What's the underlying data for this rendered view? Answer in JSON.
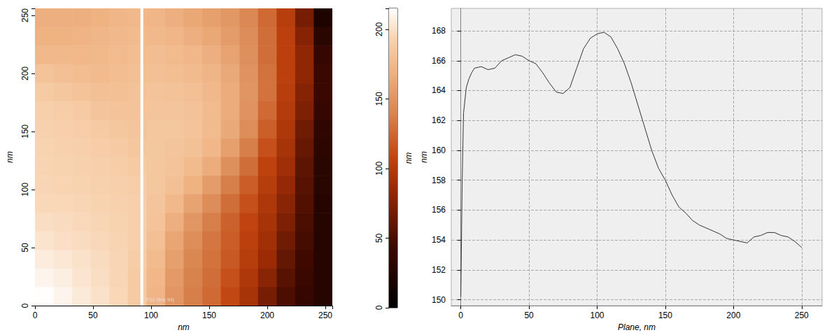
{
  "chart_data": [
    {
      "type": "heatmap",
      "x_label": "nm",
      "y_label": "nm",
      "xlim": [
        0,
        256
      ],
      "ylim": [
        0,
        256
      ],
      "xticks": [
        0,
        50,
        100,
        150,
        200,
        250
      ],
      "yticks": [
        0,
        50,
        100,
        150,
        200,
        250
      ],
      "x": [
        8,
        24,
        40,
        56,
        72,
        88,
        104,
        120,
        136,
        152,
        168,
        184,
        200,
        216,
        232,
        248
      ],
      "y": [
        248,
        232,
        216,
        200,
        184,
        168,
        152,
        136,
        120,
        104,
        88,
        72,
        56,
        40,
        24,
        8
      ],
      "cells": [
        [
          150,
          150,
          150,
          152,
          155,
          158,
          155,
          150,
          145,
          140,
          135,
          125,
          110,
          85,
          50,
          15
        ],
        [
          152,
          152,
          153,
          155,
          158,
          160,
          158,
          155,
          150,
          145,
          138,
          128,
          112,
          88,
          55,
          22
        ],
        [
          158,
          157,
          156,
          157,
          160,
          162,
          162,
          160,
          156,
          150,
          142,
          130,
          112,
          88,
          58,
          28
        ],
        [
          168,
          165,
          162,
          160,
          162,
          165,
          165,
          163,
          160,
          154,
          146,
          132,
          114,
          88,
          58,
          30
        ],
        [
          175,
          172,
          168,
          165,
          165,
          167,
          168,
          167,
          164,
          158,
          148,
          133,
          114,
          86,
          55,
          30
        ],
        [
          180,
          178,
          175,
          170,
          168,
          168,
          170,
          170,
          167,
          160,
          148,
          132,
          110,
          82,
          52,
          28
        ],
        [
          182,
          180,
          178,
          175,
          172,
          170,
          172,
          172,
          168,
          160,
          146,
          128,
          105,
          78,
          48,
          25
        ],
        [
          184,
          182,
          180,
          178,
          175,
          172,
          172,
          170,
          166,
          156,
          140,
          120,
          98,
          72,
          45,
          24
        ],
        [
          185,
          184,
          182,
          180,
          178,
          175,
          172,
          168,
          160,
          148,
          130,
          112,
          90,
          66,
          42,
          22
        ],
        [
          186,
          185,
          184,
          182,
          180,
          178,
          172,
          165,
          152,
          138,
          120,
          104,
          84,
          60,
          40,
          22
        ],
        [
          188,
          187,
          186,
          184,
          182,
          180,
          170,
          158,
          142,
          128,
          112,
          98,
          78,
          56,
          38,
          20
        ],
        [
          192,
          190,
          188,
          186,
          184,
          180,
          168,
          150,
          134,
          120,
          106,
          92,
          72,
          52,
          36,
          20
        ],
        [
          196,
          193,
          190,
          188,
          185,
          180,
          164,
          144,
          128,
          116,
          104,
          88,
          68,
          48,
          34,
          20
        ],
        [
          202,
          198,
          194,
          190,
          186,
          178,
          160,
          140,
          124,
          114,
          102,
          84,
          62,
          44,
          32,
          20
        ],
        [
          208,
          203,
          197,
          192,
          186,
          176,
          156,
          136,
          122,
          112,
          98,
          78,
          56,
          40,
          30,
          20
        ],
        [
          214,
          208,
          200,
          194,
          187,
          175,
          154,
          134,
          120,
          110,
          94,
          72,
          50,
          36,
          28,
          20
        ]
      ],
      "colorbar": {
        "range": [
          0,
          215
        ],
        "ticks": [
          0,
          50,
          100,
          150,
          200
        ],
        "label": "nm"
      },
      "profile_line": {
        "x": 92,
        "label": "PS1 (line 94)"
      }
    },
    {
      "type": "line",
      "x_label": "Plane, nm",
      "y_label": "nm",
      "xlim": [
        -7,
        265
      ],
      "ylim": [
        149.6,
        169.5
      ],
      "xticks": [
        0,
        50,
        100,
        150,
        200,
        250
      ],
      "yticks": [
        150,
        152,
        154,
        156,
        158,
        160,
        162,
        164,
        166,
        168
      ],
      "x": [
        0,
        1,
        2,
        4,
        6,
        8,
        10,
        15,
        20,
        25,
        30,
        35,
        40,
        45,
        50,
        55,
        60,
        65,
        70,
        75,
        80,
        85,
        90,
        95,
        100,
        105,
        110,
        115,
        120,
        125,
        130,
        135,
        140,
        145,
        150,
        155,
        160,
        165,
        170,
        175,
        180,
        185,
        190,
        195,
        200,
        205,
        210,
        215,
        220,
        225,
        230,
        235,
        240,
        245,
        250
      ],
      "values": [
        150.2,
        158,
        162.5,
        164.2,
        164.8,
        165.2,
        165.5,
        165.6,
        165.4,
        165.5,
        166.0,
        166.2,
        166.4,
        166.3,
        166.0,
        165.8,
        165.2,
        164.5,
        163.9,
        163.8,
        164.2,
        165.5,
        166.8,
        167.5,
        167.8,
        167.9,
        167.6,
        166.8,
        165.8,
        164.5,
        163.0,
        161.5,
        160.0,
        158.8,
        158.0,
        157.0,
        156.2,
        155.8,
        155.3,
        155.0,
        154.8,
        154.6,
        154.4,
        154.1,
        154.0,
        153.9,
        153.8,
        154.2,
        154.3,
        154.5,
        154.5,
        154.3,
        154.2,
        153.9,
        153.5
      ],
      "color": "#333333",
      "grid": true
    }
  ]
}
